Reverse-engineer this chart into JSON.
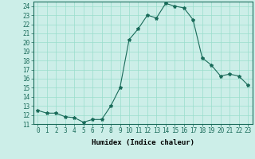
{
  "xlabel": "Humidex (Indice chaleur)",
  "ylabel": "",
  "x": [
    0,
    1,
    2,
    3,
    4,
    5,
    6,
    7,
    8,
    9,
    10,
    11,
    12,
    13,
    14,
    15,
    16,
    17,
    18,
    19,
    20,
    21,
    22,
    23
  ],
  "y": [
    12.5,
    12.2,
    12.2,
    11.8,
    11.7,
    11.2,
    11.5,
    11.5,
    13.0,
    15.0,
    20.3,
    21.5,
    23.0,
    22.7,
    24.3,
    24.0,
    23.8,
    22.5,
    18.3,
    17.5,
    16.3,
    16.5,
    16.3,
    15.3
  ],
  "line_color": "#1a6b5a",
  "marker": "*",
  "marker_size": 3,
  "bg_color": "#cceee8",
  "grid_color": "#99ddcc",
  "ylim": [
    11,
    24.5
  ],
  "xlim": [
    -0.5,
    23.5
  ],
  "yticks": [
    11,
    12,
    13,
    14,
    15,
    16,
    17,
    18,
    19,
    20,
    21,
    22,
    23,
    24
  ],
  "xticks": [
    0,
    1,
    2,
    3,
    4,
    5,
    6,
    7,
    8,
    9,
    10,
    11,
    12,
    13,
    14,
    15,
    16,
    17,
    18,
    19,
    20,
    21,
    22,
    23
  ],
  "tick_fontsize": 5.5,
  "xlabel_fontsize": 6.5,
  "linewidth": 0.8
}
